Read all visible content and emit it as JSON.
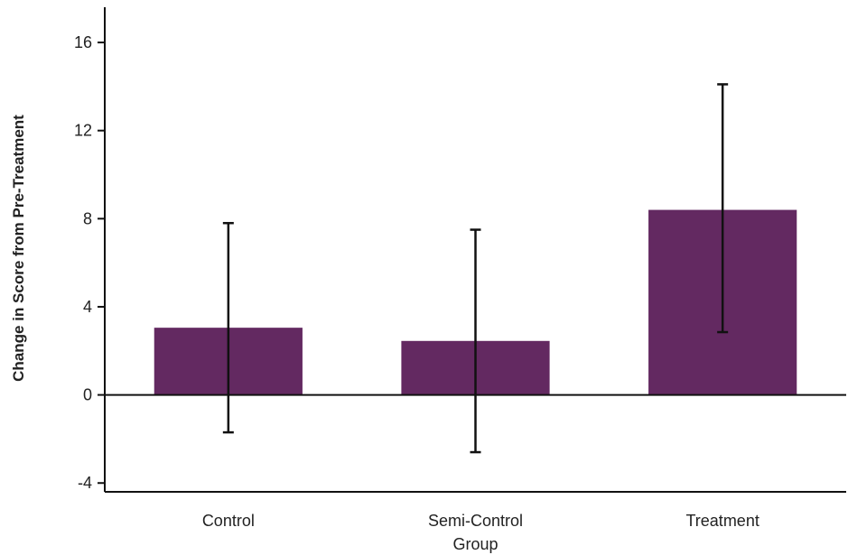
{
  "chart_data": {
    "type": "bar",
    "title": "",
    "xlabel": "",
    "ylabel": "Change in Score from Pre-Treatment",
    "categories": [
      [
        "Control"
      ],
      [
        "Semi-Control",
        "Group"
      ],
      [
        "Treatment"
      ]
    ],
    "values": [
      3.05,
      2.45,
      8.4
    ],
    "error_low": [
      -1.7,
      -2.6,
      2.85
    ],
    "error_high": [
      7.8,
      7.5,
      14.1
    ],
    "ylim": [
      -4.4,
      17.6
    ],
    "yticks": [
      -4,
      0,
      4,
      8,
      12,
      16
    ],
    "grid": false,
    "legend": "none",
    "colors": {
      "bar": "#632961",
      "axis": "#111111",
      "error_bar": "#111111"
    }
  }
}
